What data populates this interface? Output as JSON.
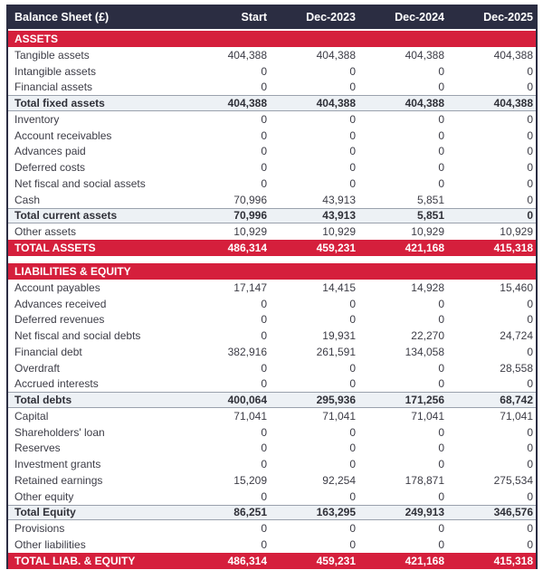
{
  "header": {
    "title": "Balance Sheet (£)",
    "columns": [
      "Start",
      "Dec-2023",
      "Dec-2024",
      "Dec-2025"
    ]
  },
  "colors": {
    "header_navy": "#2b2d42",
    "accent_red": "#d51f3c",
    "subtotal_bg": "#edf1f5",
    "body_text": "#3c3c46"
  },
  "sections": [
    {
      "label": "ASSETS",
      "rows": [
        {
          "label": "Tangible assets",
          "values": [
            "404,388",
            "404,388",
            "404,388",
            "404,388"
          ],
          "type": "item"
        },
        {
          "label": "Intangible assets",
          "values": [
            "0",
            "0",
            "0",
            "0"
          ],
          "type": "item"
        },
        {
          "label": "Financial assets",
          "values": [
            "0",
            "0",
            "0",
            "0"
          ],
          "type": "item"
        },
        {
          "label": "Total fixed assets",
          "values": [
            "404,388",
            "404,388",
            "404,388",
            "404,388"
          ],
          "type": "subtotal"
        },
        {
          "label": "Inventory",
          "values": [
            "0",
            "0",
            "0",
            "0"
          ],
          "type": "item"
        },
        {
          "label": "Account receivables",
          "values": [
            "0",
            "0",
            "0",
            "0"
          ],
          "type": "item"
        },
        {
          "label": "Advances paid",
          "values": [
            "0",
            "0",
            "0",
            "0"
          ],
          "type": "item"
        },
        {
          "label": "Deferred costs",
          "values": [
            "0",
            "0",
            "0",
            "0"
          ],
          "type": "item"
        },
        {
          "label": "Net fiscal and social assets",
          "values": [
            "0",
            "0",
            "0",
            "0"
          ],
          "type": "item"
        },
        {
          "label": "Cash",
          "values": [
            "70,996",
            "43,913",
            "5,851",
            "0"
          ],
          "type": "item"
        },
        {
          "label": "Total current assets",
          "values": [
            "70,996",
            "43,913",
            "5,851",
            "0"
          ],
          "type": "subtotal"
        },
        {
          "label": "Other assets",
          "values": [
            "10,929",
            "10,929",
            "10,929",
            "10,929"
          ],
          "type": "item"
        },
        {
          "label": "TOTAL ASSETS",
          "values": [
            "486,314",
            "459,231",
            "421,168",
            "415,318"
          ],
          "type": "total"
        }
      ]
    },
    {
      "label": "LIABILITIES & EQUITY",
      "rows": [
        {
          "label": "Account payables",
          "values": [
            "17,147",
            "14,415",
            "14,928",
            "15,460"
          ],
          "type": "item"
        },
        {
          "label": "Advances received",
          "values": [
            "0",
            "0",
            "0",
            "0"
          ],
          "type": "item"
        },
        {
          "label": "Deferred revenues",
          "values": [
            "0",
            "0",
            "0",
            "0"
          ],
          "type": "item"
        },
        {
          "label": "Net fiscal and social debts",
          "values": [
            "0",
            "19,931",
            "22,270",
            "24,724"
          ],
          "type": "item"
        },
        {
          "label": "Financial debt",
          "values": [
            "382,916",
            "261,591",
            "134,058",
            "0"
          ],
          "type": "item"
        },
        {
          "label": "Overdraft",
          "values": [
            "0",
            "0",
            "0",
            "28,558"
          ],
          "type": "item"
        },
        {
          "label": "Accrued interests",
          "values": [
            "0",
            "0",
            "0",
            "0"
          ],
          "type": "item"
        },
        {
          "label": "Total debts",
          "values": [
            "400,064",
            "295,936",
            "171,256",
            "68,742"
          ],
          "type": "subtotal"
        },
        {
          "label": "Capital",
          "values": [
            "71,041",
            "71,041",
            "71,041",
            "71,041"
          ],
          "type": "item"
        },
        {
          "label": "Shareholders' loan",
          "values": [
            "0",
            "0",
            "0",
            "0"
          ],
          "type": "item"
        },
        {
          "label": "Reserves",
          "values": [
            "0",
            "0",
            "0",
            "0"
          ],
          "type": "item"
        },
        {
          "label": "Investment grants",
          "values": [
            "0",
            "0",
            "0",
            "0"
          ],
          "type": "item"
        },
        {
          "label": "Retained earnings",
          "values": [
            "15,209",
            "92,254",
            "178,871",
            "275,534"
          ],
          "type": "item"
        },
        {
          "label": "Other equity",
          "values": [
            "0",
            "0",
            "0",
            "0"
          ],
          "type": "item"
        },
        {
          "label": "Total Equity",
          "values": [
            "86,251",
            "163,295",
            "249,913",
            "346,576"
          ],
          "type": "subtotal"
        },
        {
          "label": "Provisions",
          "values": [
            "0",
            "0",
            "0",
            "0"
          ],
          "type": "item"
        },
        {
          "label": "Other liabilities",
          "values": [
            "0",
            "0",
            "0",
            "0"
          ],
          "type": "item"
        },
        {
          "label": "TOTAL LIAB. & EQUITY",
          "values": [
            "486,314",
            "459,231",
            "421,168",
            "415,318"
          ],
          "type": "total"
        }
      ]
    }
  ]
}
